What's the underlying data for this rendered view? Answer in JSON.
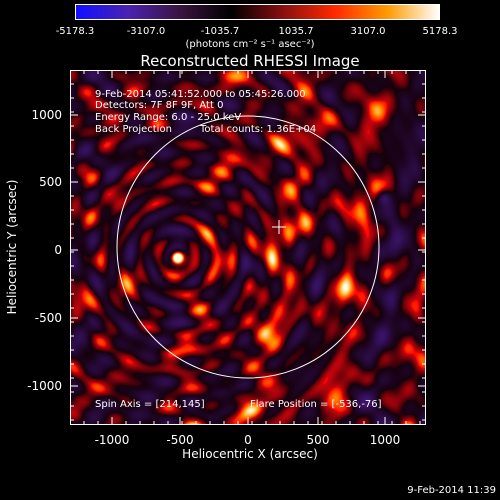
{
  "colorbar": {
    "ticks": [
      "-5178.3",
      "-3107.0",
      "-1035.7",
      "1035.7",
      "3107.0",
      "5178.3"
    ],
    "unit": "(photons cm⁻² s⁻¹ asec⁻²)",
    "colors": [
      "#1010ff",
      "#4a22b0",
      "#3a1440",
      "#000000",
      "#8a0f10",
      "#ff2a00",
      "#ff9a00",
      "#ffffff"
    ]
  },
  "title": "Reconstructed RHESSI Image",
  "info": {
    "time_range": "9-Feb-2014 05:41:52.000 to 05:45:26.000",
    "detectors": "Detectors: 7F 8F 9F, Att 0",
    "energy": "Energy Range: 6.0 - 25.0 keV",
    "method": "Back Projection",
    "counts": "Total counts: 1.36E+04",
    "spin_axis": "Spin Axis = [214,145]",
    "flare_position": "Flare Position = [-536,-76]"
  },
  "axes": {
    "xlabel": "Heliocentric X (arcsec)",
    "ylabel": "Heliocentric Y (arcsec)",
    "xticks": [
      "-1000",
      "-500",
      "0",
      "500",
      "1000"
    ],
    "yticks": [
      "1000",
      "500",
      "0",
      "-500",
      "-1000"
    ],
    "xlim": [
      -1290,
      1290
    ],
    "ylim": [
      -1290,
      1290
    ]
  },
  "footer": {
    "date": "9-Feb-2014 11:39"
  }
}
